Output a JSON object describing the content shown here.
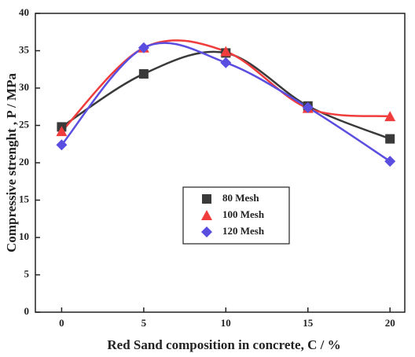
{
  "chart_data": {
    "type": "line",
    "x_label": "Red Sand composition in concrete, C / %",
    "y_label": "Compressive strenght , P / MPa",
    "x": [
      0,
      5,
      10,
      15,
      20
    ],
    "series": [
      {
        "name": "80 Mesh",
        "color": "#3a3a3a",
        "marker": "square",
        "values": [
          24.8,
          31.9,
          34.7,
          27.6,
          23.2
        ]
      },
      {
        "name": "100 Mesh",
        "color": "#f03c3c",
        "marker": "triangle",
        "values": [
          24.2,
          35.4,
          34.9,
          27.3,
          26.2
        ]
      },
      {
        "name": "120 Mesh",
        "color": "#5a4ee0",
        "marker": "diamond",
        "values": [
          22.4,
          35.4,
          33.4,
          27.4,
          20.2
        ]
      }
    ],
    "xlim": [
      -1.6,
      20.9
    ],
    "xticks": [
      0,
      5,
      10,
      15,
      20
    ],
    "ylim": [
      0,
      40
    ],
    "yticks": [
      0,
      5,
      10,
      15,
      20,
      25,
      30,
      35,
      40
    ],
    "smooth": true
  }
}
